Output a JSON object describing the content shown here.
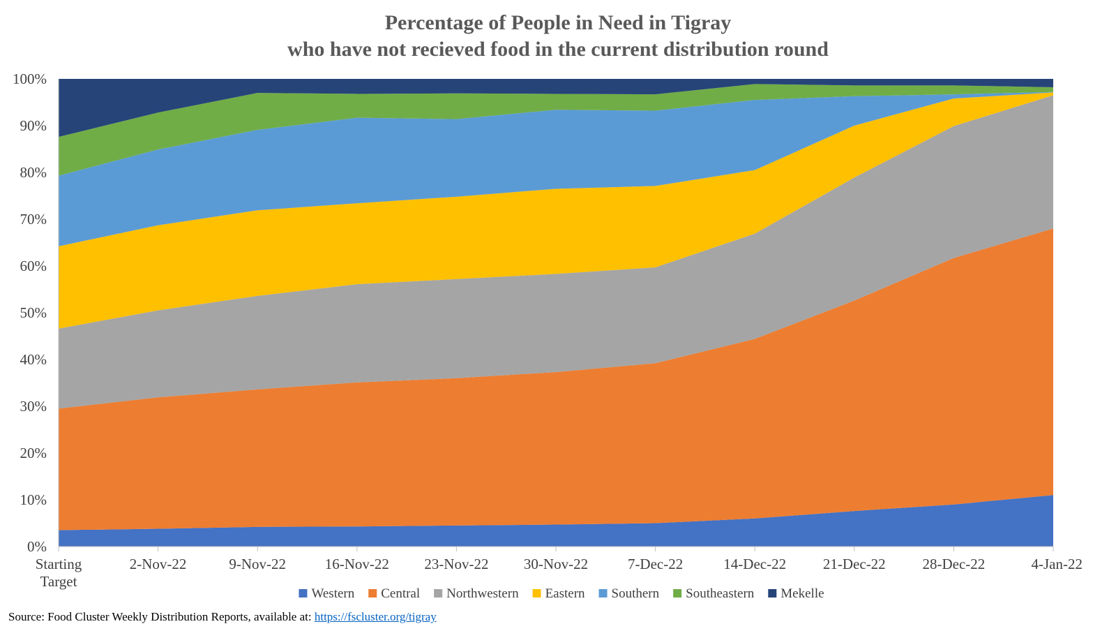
{
  "chart_data": {
    "type": "area",
    "stacked": true,
    "normalized": true,
    "title": "Percentage of People in Need in Tigray",
    "subtitle": "who have not recieved food in the current distribution round",
    "categories": [
      [
        "Starting",
        "Target"
      ],
      [
        "2-Nov-22"
      ],
      [
        "9-Nov-22"
      ],
      [
        "16-Nov-22"
      ],
      [
        "23-Nov-22"
      ],
      [
        "30-Nov-22"
      ],
      [
        "7-Dec-22"
      ],
      [
        "14-Dec-22"
      ],
      [
        "21-Dec-22"
      ],
      [
        "28-Dec-22"
      ],
      [
        "4-Jan-22"
      ]
    ],
    "ylim": [
      0,
      100
    ],
    "yticks": [
      "0%",
      "10%",
      "20%",
      "30%",
      "40%",
      "50%",
      "60%",
      "70%",
      "80%",
      "90%",
      "100%"
    ],
    "grid": false,
    "legend_position": "bottom",
    "series": [
      {
        "name": "Western",
        "color": "#4472c4",
        "values": [
          3.5,
          3.8,
          4.2,
          4.3,
          4.5,
          4.7,
          5.0,
          6.0,
          7.6,
          9.0,
          11.0
        ]
      },
      {
        "name": "Central",
        "color": "#ed7d31",
        "values": [
          26.0,
          28.1,
          29.4,
          30.8,
          31.5,
          32.6,
          34.2,
          38.4,
          45.0,
          52.7,
          57.0
        ]
      },
      {
        "name": "Northwestern",
        "color": "#a5a5a5",
        "values": [
          17.1,
          18.6,
          20.0,
          21.0,
          21.2,
          21.0,
          20.5,
          22.5,
          26.3,
          28.2,
          28.5
        ]
      },
      {
        "name": "Eastern",
        "color": "#ffc000",
        "values": [
          17.6,
          18.2,
          18.3,
          17.3,
          17.6,
          18.2,
          17.4,
          13.6,
          11.1,
          5.9,
          0.6
        ]
      },
      {
        "name": "Southern",
        "color": "#5b9bd5",
        "values": [
          15.1,
          16.2,
          17.2,
          18.3,
          16.6,
          16.9,
          16.1,
          15.0,
          6.3,
          0.9,
          0.1
        ]
      },
      {
        "name": "Southeastern",
        "color": "#70ad47",
        "values": [
          8.3,
          7.9,
          7.9,
          5.1,
          5.5,
          3.4,
          3.5,
          3.4,
          2.3,
          1.9,
          1.0
        ]
      },
      {
        "name": "Mekelle",
        "color": "#264478",
        "values": [
          12.4,
          7.2,
          3.0,
          3.2,
          3.1,
          3.2,
          3.3,
          1.1,
          1.4,
          1.4,
          1.8
        ]
      }
    ]
  },
  "source": {
    "prefix": "Source: Food Cluster Weekly Distribution Reports, available at: ",
    "link": "https://fscluster.org/tigray"
  }
}
